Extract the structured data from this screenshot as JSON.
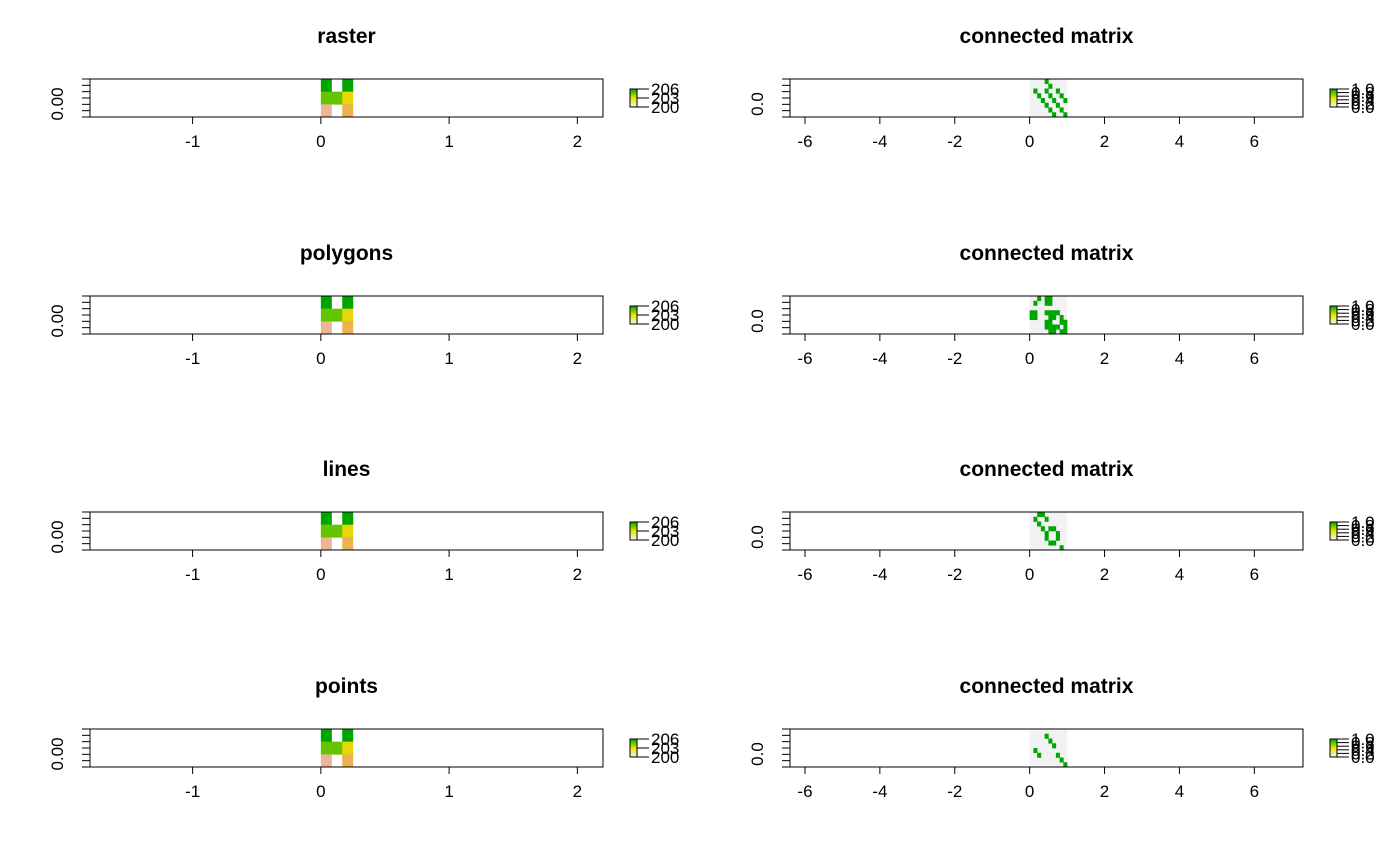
{
  "chart_data": [
    {
      "type": "heatmap",
      "title": "raster",
      "xlabel": "",
      "ylabel": "",
      "xlim": [
        -1.8,
        2.2
      ],
      "xticks": [
        "-1",
        "0",
        "1",
        "2"
      ],
      "xtick_values": [
        -1,
        0,
        1,
        2
      ],
      "ytick_label": "0.00",
      "extent": [
        0,
        0.25
      ],
      "cells": [
        [
          206,
          0,
          206
        ],
        [
          205,
          205,
          203
        ],
        [
          201,
          0,
          202
        ]
      ],
      "legend": {
        "labels": [
          "206",
          "203",
          "200"
        ],
        "colors": [
          "#00A600",
          "#E6E600",
          "#F2F2F2"
        ]
      }
    },
    {
      "type": "heatmap",
      "title": "connected matrix",
      "xlabel": "",
      "ylabel": "",
      "xlim": [
        -6.4,
        7.3
      ],
      "xticks": [
        "-6",
        "-4",
        "-2",
        "0",
        "2",
        "4",
        "6"
      ],
      "xtick_values": [
        -6,
        -4,
        -2,
        0,
        2,
        4,
        6
      ],
      "ytick_label": "0.0",
      "extent": [
        0,
        1
      ],
      "background": "#F2F2F2",
      "cells": [
        [
          0,
          0,
          0,
          0,
          1,
          0,
          0,
          0,
          0,
          0
        ],
        [
          0,
          0,
          0,
          0,
          0,
          1,
          0,
          0,
          0,
          0
        ],
        [
          0,
          1,
          0,
          0,
          1,
          0,
          0,
          1,
          0,
          0
        ],
        [
          0,
          0,
          1,
          0,
          0,
          1,
          0,
          0,
          1,
          0
        ],
        [
          0,
          0,
          0,
          1,
          0,
          0,
          1,
          0,
          0,
          1
        ],
        [
          0,
          0,
          0,
          0,
          1,
          0,
          0,
          1,
          0,
          0
        ],
        [
          0,
          0,
          0,
          0,
          0,
          1,
          0,
          0,
          1,
          0
        ],
        [
          0,
          0,
          0,
          0,
          0,
          0,
          1,
          0,
          0,
          1
        ]
      ],
      "legend": {
        "labels": [
          "1.0",
          "0.8",
          "0.6",
          "0.4",
          "0.2",
          "0.0"
        ],
        "colors": [
          "#00A600",
          "#E6E600",
          "#F2F2F2"
        ]
      }
    },
    {
      "type": "heatmap",
      "title": "polygons",
      "xlabel": "",
      "ylabel": "",
      "xlim": [
        -1.8,
        2.2
      ],
      "xticks": [
        "-1",
        "0",
        "1",
        "2"
      ],
      "xtick_values": [
        -1,
        0,
        1,
        2
      ],
      "ytick_label": "0.00",
      "extent": [
        0,
        0.25
      ],
      "cells": [
        [
          206,
          0,
          206
        ],
        [
          205,
          205,
          203
        ],
        [
          201,
          0,
          202
        ]
      ],
      "legend": {
        "labels": [
          "206",
          "203",
          "200"
        ],
        "colors": [
          "#00A600",
          "#E6E600",
          "#F2F2F2"
        ]
      }
    },
    {
      "type": "heatmap",
      "title": "connected matrix",
      "xlabel": "",
      "ylabel": "",
      "xlim": [
        -6.4,
        7.3
      ],
      "xticks": [
        "-6",
        "-4",
        "-2",
        "0",
        "2",
        "4",
        "6"
      ],
      "xtick_values": [
        -6,
        -4,
        -2,
        0,
        2,
        4,
        6
      ],
      "ytick_label": "0.0",
      "extent": [
        0,
        1
      ],
      "background": "#F2F2F2",
      "cells": [
        [
          0,
          0,
          1,
          0,
          1,
          1,
          0,
          0,
          0,
          0
        ],
        [
          0,
          1,
          0,
          0,
          1,
          1,
          0,
          0,
          0,
          0
        ],
        [
          0,
          0,
          0,
          0,
          0,
          0,
          0,
          0,
          0,
          0
        ],
        [
          1,
          1,
          0,
          0,
          1,
          1,
          1,
          1,
          0,
          0
        ],
        [
          1,
          1,
          0,
          0,
          0,
          1,
          1,
          0,
          1,
          0
        ],
        [
          0,
          0,
          0,
          0,
          1,
          1,
          0,
          0,
          1,
          1
        ],
        [
          0,
          0,
          0,
          0,
          1,
          1,
          1,
          1,
          0,
          1
        ],
        [
          0,
          0,
          0,
          0,
          0,
          1,
          1,
          0,
          1,
          1
        ]
      ],
      "legend": {
        "labels": [
          "1.0",
          "0.8",
          "0.6",
          "0.4",
          "0.2",
          "0.0"
        ],
        "colors": [
          "#00A600",
          "#E6E600",
          "#F2F2F2"
        ]
      }
    },
    {
      "type": "heatmap",
      "title": "lines",
      "xlabel": "",
      "ylabel": "",
      "xlim": [
        -1.8,
        2.2
      ],
      "xticks": [
        "-1",
        "0",
        "1",
        "2"
      ],
      "xtick_values": [
        -1,
        0,
        1,
        2
      ],
      "ytick_label": "0.00",
      "extent": [
        0,
        0.25
      ],
      "cells": [
        [
          206,
          0,
          206
        ],
        [
          205,
          205,
          203
        ],
        [
          201,
          0,
          202
        ]
      ],
      "legend": {
        "labels": [
          "206",
          "203",
          "200"
        ],
        "colors": [
          "#00A600",
          "#E6E600",
          "#F2F2F2"
        ]
      }
    },
    {
      "type": "heatmap",
      "title": "connected matrix",
      "xlabel": "",
      "ylabel": "",
      "xlim": [
        -6.4,
        7.3
      ],
      "xticks": [
        "-6",
        "-4",
        "-2",
        "0",
        "2",
        "4",
        "6"
      ],
      "xtick_values": [
        -6,
        -4,
        -2,
        0,
        2,
        4,
        6
      ],
      "ytick_label": "0.0",
      "extent": [
        0,
        1
      ],
      "background": "#F2F2F2",
      "cells": [
        [
          0,
          0,
          1,
          1,
          0,
          0,
          0,
          0,
          0,
          0
        ],
        [
          0,
          1,
          0,
          0,
          1,
          0,
          0,
          0,
          0,
          0
        ],
        [
          0,
          0,
          1,
          0,
          0,
          0,
          0,
          0,
          0,
          0
        ],
        [
          0,
          0,
          0,
          1,
          0,
          1,
          1,
          0,
          0,
          0
        ],
        [
          0,
          0,
          0,
          0,
          1,
          0,
          0,
          1,
          0,
          0
        ],
        [
          0,
          0,
          0,
          0,
          1,
          0,
          0,
          1,
          0,
          0
        ],
        [
          0,
          0,
          0,
          0,
          0,
          1,
          1,
          0,
          0,
          0
        ],
        [
          0,
          0,
          0,
          0,
          0,
          0,
          0,
          0,
          1,
          0
        ]
      ],
      "legend": {
        "labels": [
          "1.0",
          "0.8",
          "0.6",
          "0.4",
          "0.2",
          "0.0"
        ],
        "colors": [
          "#00A600",
          "#E6E600",
          "#F2F2F2"
        ]
      }
    },
    {
      "type": "heatmap",
      "title": "points",
      "xlabel": "",
      "ylabel": "",
      "xlim": [
        -1.8,
        2.2
      ],
      "xticks": [
        "-1",
        "0",
        "1",
        "2"
      ],
      "xtick_values": [
        -1,
        0,
        1,
        2
      ],
      "ytick_label": "0.00",
      "extent": [
        0,
        0.25
      ],
      "cells": [
        [
          206,
          0,
          206
        ],
        [
          205,
          205,
          203
        ],
        [
          201,
          0,
          202
        ]
      ],
      "legend": {
        "labels": [
          "206",
          "203",
          "200"
        ],
        "colors": [
          "#00A600",
          "#E6E600",
          "#F2F2F2"
        ]
      }
    },
    {
      "type": "heatmap",
      "title": "connected matrix",
      "xlabel": "",
      "ylabel": "",
      "xlim": [
        -6.4,
        7.3
      ],
      "xticks": [
        "-6",
        "-4",
        "-2",
        "0",
        "2",
        "4",
        "6"
      ],
      "xtick_values": [
        -6,
        -4,
        -2,
        0,
        2,
        4,
        6
      ],
      "ytick_label": "0.0",
      "extent": [
        0,
        1
      ],
      "background": "#F2F2F2",
      "cells": [
        [
          0,
          0,
          0,
          0,
          0,
          0,
          0,
          0,
          0,
          0
        ],
        [
          0,
          0,
          0,
          0,
          1,
          0,
          0,
          0,
          0,
          0
        ],
        [
          0,
          0,
          0,
          0,
          0,
          1,
          0,
          0,
          0,
          0
        ],
        [
          0,
          0,
          0,
          0,
          0,
          0,
          1,
          0,
          0,
          0
        ],
        [
          0,
          1,
          0,
          0,
          0,
          0,
          0,
          0,
          0,
          0
        ],
        [
          0,
          0,
          1,
          0,
          0,
          0,
          0,
          1,
          0,
          0
        ],
        [
          0,
          0,
          0,
          0,
          0,
          0,
          0,
          0,
          1,
          0
        ],
        [
          0,
          0,
          0,
          0,
          0,
          0,
          0,
          0,
          0,
          1
        ]
      ],
      "legend": {
        "labels": [
          "1.0",
          "0.8",
          "0.6",
          "0.4",
          "0.2",
          "0.0"
        ],
        "colors": [
          "#00A600",
          "#E6E600",
          "#F2F2F2"
        ]
      }
    }
  ]
}
